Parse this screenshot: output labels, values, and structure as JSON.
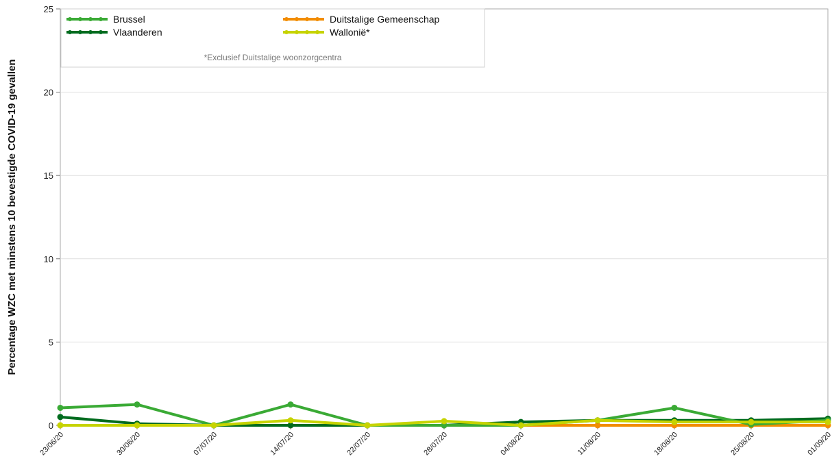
{
  "chart_data": {
    "type": "line",
    "ylabel": "Percentage WZC met minstens 10 bevestigde COVID-19 gevallen",
    "xlabel": "",
    "ylim": [
      0,
      25
    ],
    "yticks": [
      0,
      5,
      10,
      15,
      20,
      25
    ],
    "grid": true,
    "legend_placement": "top-left",
    "categories": [
      "23/06/20",
      "30/06/20",
      "07/07/20",
      "14/07/20",
      "22/07/20",
      "28/07/20",
      "04/08/20",
      "11/08/20",
      "18/08/20",
      "25/08/20",
      "01/09/20"
    ],
    "series": [
      {
        "name": "Brussel",
        "color": "#3aaa35",
        "values": [
          1.05,
          1.25,
          0,
          1.25,
          0,
          0,
          0,
          0.3,
          1.05,
          0.05,
          0.3
        ]
      },
      {
        "name": "Vlaanderen",
        "color": "#006b1e",
        "values": [
          0.5,
          0.1,
          0,
          0,
          0,
          0,
          0.2,
          0.3,
          0.3,
          0.3,
          0.4
        ]
      },
      {
        "name": "Duitstalige Gemeenschap",
        "color": "#f28c00",
        "values": [
          0,
          0,
          0,
          0,
          0,
          0,
          0,
          0,
          0,
          0,
          0
        ]
      },
      {
        "name": "Wallonië*",
        "color": "#c6d300",
        "values": [
          0,
          0,
          0,
          0.3,
          0,
          0.25,
          0,
          0.3,
          0.2,
          0.2,
          0.2
        ]
      }
    ],
    "legend_columns": [
      [
        "Brussel",
        "Vlaanderen"
      ],
      [
        "Duitstalige Gemeenschap",
        "Wallonië*"
      ]
    ],
    "annotation": "*Exclusief Duitstalige woonzorgcentra"
  }
}
